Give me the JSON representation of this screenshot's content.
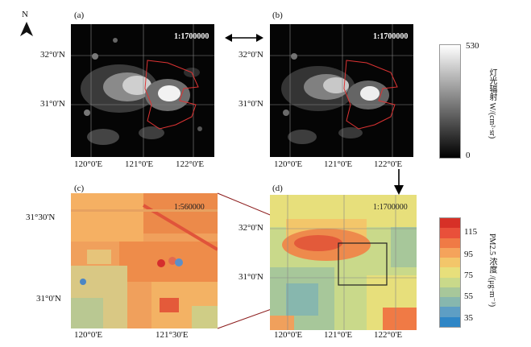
{
  "north_label": "N",
  "panels": {
    "a": {
      "letter": "(a)",
      "scale": "1:1700000",
      "y_ticks": [
        "32°0'N",
        "31°0'N"
      ],
      "x_ticks": [
        "120°0'E",
        "121°0'E",
        "122°0'E"
      ]
    },
    "b": {
      "letter": "(b)",
      "scale": "1:1700000",
      "y_ticks": [
        "32°0'N",
        "31°0'N"
      ],
      "x_ticks": [
        "120°0'E",
        "121°0'E",
        "122°0'E"
      ]
    },
    "c": {
      "letter": "(c)",
      "scale": "1:560000",
      "y_ticks": [
        "31°30'N",
        "31°0'N"
      ],
      "x_ticks": [
        "120°0'E",
        "121°30'E"
      ]
    },
    "d": {
      "letter": "(d)",
      "scale": "1:1700000",
      "y_ticks": [
        "32°0'N",
        "31°0'N"
      ],
      "x_ticks": [
        "120°0'E",
        "121°0'E",
        "122°0'E"
      ]
    }
  },
  "colorbar_light": {
    "title": "灯光辐射 W/(cm²·sr)",
    "max": "530",
    "min": "0",
    "colors": {
      "top": "#ffffff",
      "bottom": "#000000"
    }
  },
  "colorbar_pm": {
    "title": "PM2.5 浓度 /(μg·m⁻³)",
    "ticks": [
      "115",
      "95",
      "75",
      "55",
      "35"
    ],
    "colors": [
      "#d73027",
      "#e9503a",
      "#f07a45",
      "#f5a35b",
      "#f3c66a",
      "#e7df7b",
      "#c9d98a",
      "#a7c79a",
      "#87b7ae",
      "#5e9ec4",
      "#2f86c6"
    ]
  }
}
